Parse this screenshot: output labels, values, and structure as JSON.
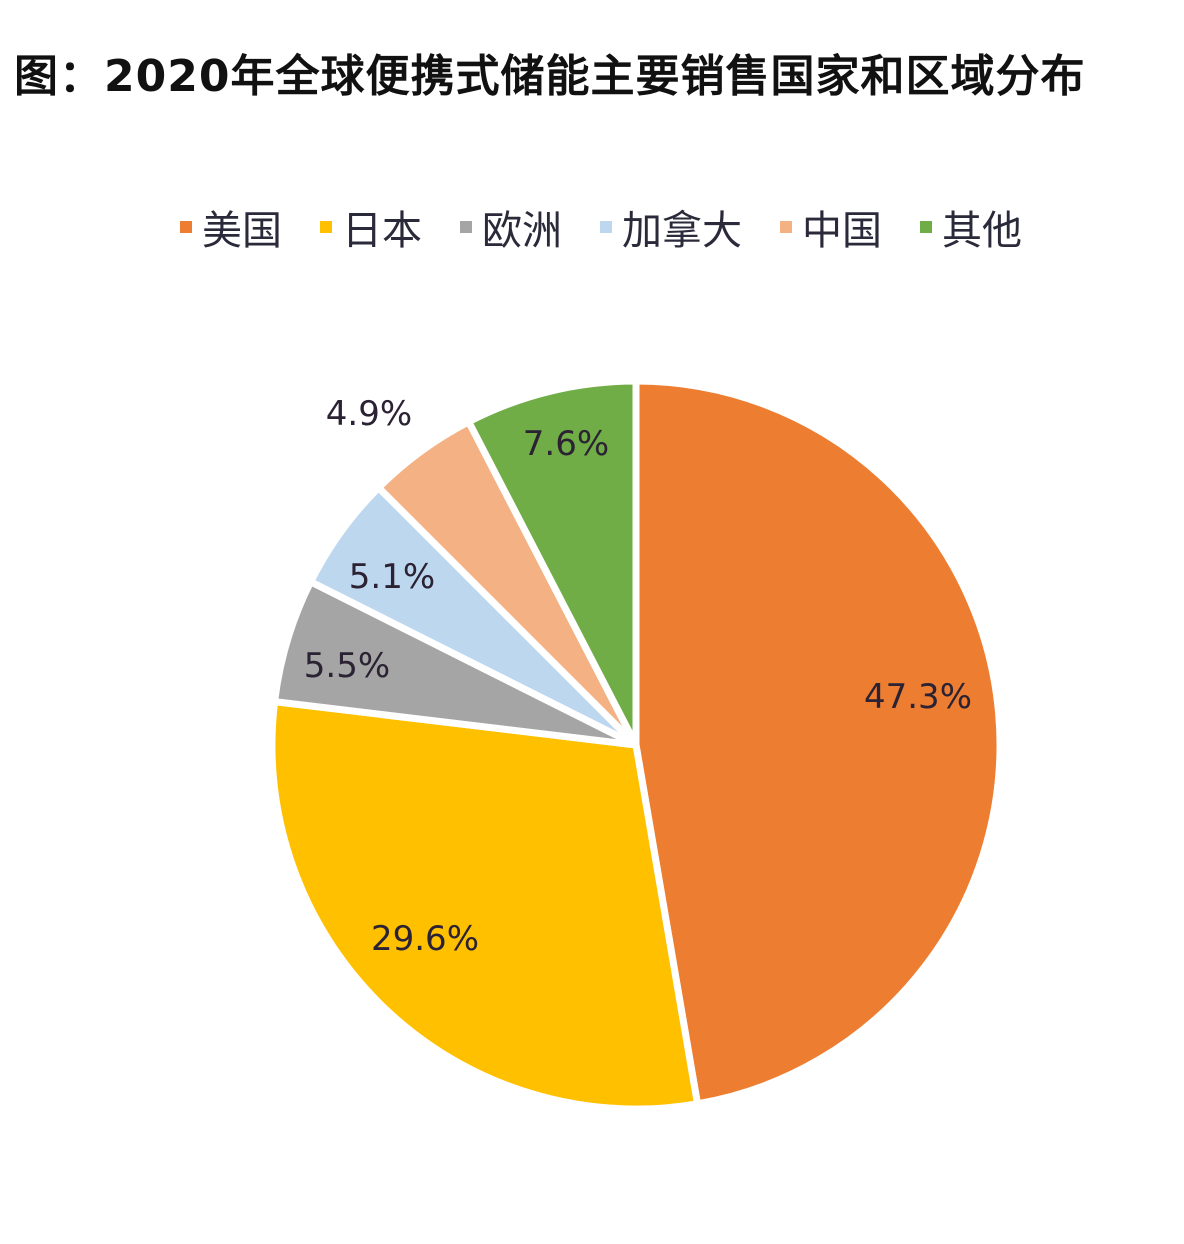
{
  "title": "图：2020年全球便携式储能主要销售国家和区域分布",
  "legend": [
    {
      "label": "美国",
      "color": "#ED7D31"
    },
    {
      "label": "日本",
      "color": "#FFC000"
    },
    {
      "label": "欧洲",
      "color": "#A5A5A5"
    },
    {
      "label": "加拿大",
      "color": "#BDD7EE"
    },
    {
      "label": "中国",
      "color": "#F4B183"
    },
    {
      "label": "其他",
      "color": "#70AD47"
    }
  ],
  "labels": {
    "us": "47.3%",
    "japan": "29.6%",
    "europe": "5.5%",
    "canada": "5.1%",
    "china": "4.9%",
    "other": "7.6%"
  },
  "chart_data": {
    "type": "pie",
    "title": "图：2020年全球便携式储能主要销售国家和区域分布",
    "categories": [
      "美国",
      "日本",
      "欧洲",
      "加拿大",
      "中国",
      "其他"
    ],
    "values": [
      47.3,
      29.6,
      5.5,
      5.1,
      4.9,
      7.6
    ],
    "unit": "%",
    "colors": [
      "#ED7D31",
      "#FFC000",
      "#A5A5A5",
      "#BDD7EE",
      "#F4B183",
      "#70AD47"
    ],
    "start_angle": "12 o'clock",
    "direction": "clockwise",
    "legend_position": "top",
    "data_labels": true
  }
}
